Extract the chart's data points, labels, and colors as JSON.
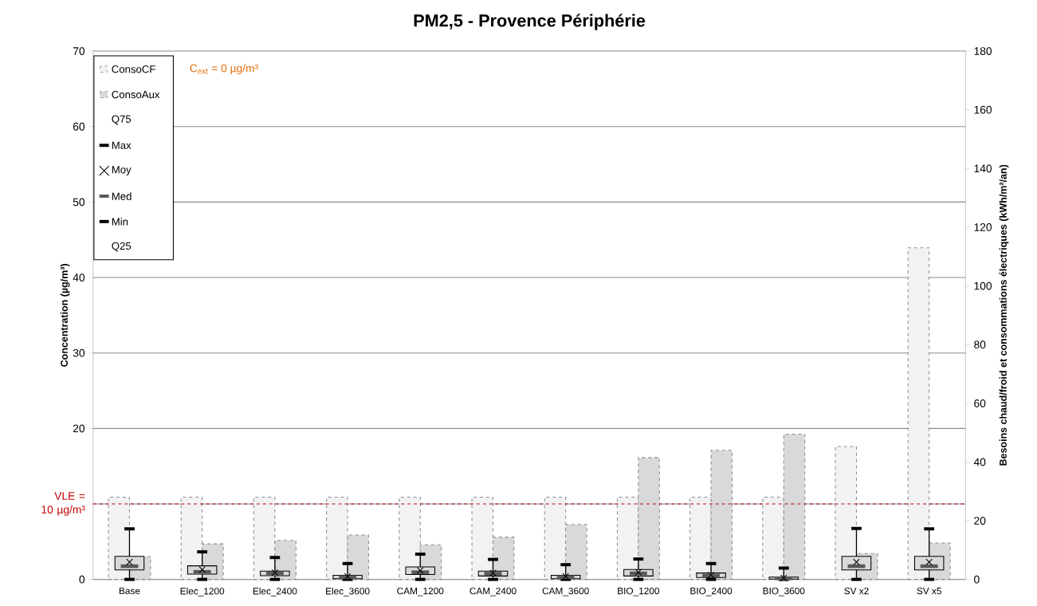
{
  "chart_data": {
    "type": "bar",
    "title": "PM2,5 - Provence Périphérie",
    "ylabel": "Concentration (µg/m³)",
    "y2label": "Besoins chaud/froid et consommations électriques (kWh/m²/an)",
    "categories": [
      "Base",
      "Elec_1200",
      "Elec_2400",
      "Elec_3600",
      "CAM_1200",
      "CAM_2400",
      "CAM_3600",
      "BIO_1200",
      "BIO_2400",
      "BIO_3600",
      "SV x2",
      "SV x5"
    ],
    "series": [
      {
        "name": "ConsoCF",
        "axis": "y2",
        "color": "#f2f2f2",
        "line_style": "dashed",
        "values": [
          28,
          28,
          28,
          28,
          28,
          28,
          28,
          28,
          28,
          28,
          45.3,
          113
        ]
      },
      {
        "name": "ConsoAux",
        "axis": "y2",
        "color": "#d9d9d9",
        "line_style": "dashed",
        "values": [
          7.8,
          12.1,
          13.3,
          15.1,
          11.8,
          14.4,
          18.7,
          41.5,
          44,
          49.5,
          8.8,
          12.4
        ]
      },
      {
        "type": "box",
        "axis": "y",
        "color": "#d9d9d9",
        "boxes": [
          {
            "low": 0,
            "q1": 1.25,
            "median": 1.75,
            "q3": 3.05,
            "high": 6.7,
            "mean": 2.3
          },
          {
            "low": 0,
            "q1": 0.7,
            "median": 1.0,
            "q3": 1.8,
            "high": 3.65,
            "mean": 1.3
          },
          {
            "low": 0,
            "q1": 0.5,
            "median": 0.8,
            "q3": 1.1,
            "high": 2.9,
            "mean": 0.9
          },
          {
            "low": 0,
            "q1": 0.1,
            "median": 0.3,
            "q3": 0.55,
            "high": 2.1,
            "mean": 0.4
          },
          {
            "low": 0,
            "q1": 0.65,
            "median": 0.95,
            "q3": 1.65,
            "high": 3.35,
            "mean": 1.2
          },
          {
            "low": 0,
            "q1": 0.45,
            "median": 0.75,
            "q3": 1.1,
            "high": 2.65,
            "mean": 0.85
          },
          {
            "low": 0,
            "q1": 0.1,
            "median": 0.3,
            "q3": 0.55,
            "high": 1.95,
            "mean": 0.4
          },
          {
            "low": 0,
            "q1": 0.45,
            "median": 0.8,
            "q3": 1.3,
            "high": 2.7,
            "mean": 0.95
          },
          {
            "low": 0,
            "q1": 0.25,
            "median": 0.5,
            "q3": 0.85,
            "high": 2.1,
            "mean": 0.6
          },
          {
            "low": 0,
            "q1": 0.05,
            "median": 0.15,
            "q3": 0.3,
            "high": 1.5,
            "mean": 0.2
          },
          {
            "low": 0,
            "q1": 1.25,
            "median": 1.75,
            "q3": 3.05,
            "high": 6.75,
            "mean": 2.3
          },
          {
            "low": 0,
            "q1": 1.25,
            "median": 1.75,
            "q3": 3.05,
            "high": 6.7,
            "mean": 2.3
          }
        ]
      }
    ],
    "ylim": [
      0,
      70
    ],
    "yticks": [
      0,
      {
        "value": 10,
        "label": null
      },
      20,
      30,
      40,
      50,
      60,
      70
    ],
    "y2lim": [
      0,
      180
    ],
    "y2ticks": [
      0,
      20,
      40,
      60,
      80,
      100,
      120,
      140,
      160,
      180
    ],
    "grid": "y",
    "legend": "top left",
    "ref_lines": [
      {
        "axis": "y",
        "value": 10,
        "label": "VLE = 10 µg/m³",
        "color": "#c00000",
        "line_style": "dashed"
      }
    ],
    "annotations": [
      "C$_{ext}$ = 0 µg/m³",
      "Q75",
      "Max",
      "Moy",
      "Med",
      "Min",
      "Q25"
    ]
  }
}
